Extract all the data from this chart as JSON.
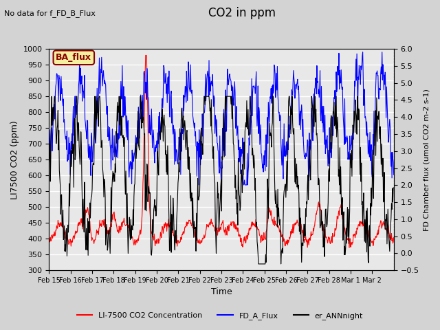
{
  "title": "CO2 in ppm",
  "annotation_topleft": "No data for f_FD_B_Flux",
  "ba_flux_label": "BA_flux",
  "xlabel": "Time",
  "ylabel_left": "LI7500 CO2 (ppm)",
  "ylabel_right_display": "FD Chamber flux (umol CO2 m-2 s-1)",
  "ylim_left": [
    300,
    1000
  ],
  "ylim_right": [
    -0.5,
    6.0
  ],
  "yticks_left": [
    300,
    350,
    400,
    450,
    500,
    550,
    600,
    650,
    700,
    750,
    800,
    850,
    900,
    950,
    1000
  ],
  "yticks_right": [
    -0.5,
    0.0,
    0.5,
    1.0,
    1.5,
    2.0,
    2.5,
    3.0,
    3.5,
    4.0,
    4.5,
    5.0,
    5.5,
    6.0
  ],
  "xtick_labels": [
    "Feb 15",
    "Feb 16",
    "Feb 17",
    "Feb 18",
    "Feb 19",
    "Feb 20",
    "Feb 21",
    "Feb 22",
    "Feb 23",
    "Feb 24",
    "Feb 25",
    "Feb 26",
    "Feb 27",
    "Feb 28",
    "Mar 1",
    "Mar 2"
  ],
  "n_days": 16,
  "legend_entries": [
    {
      "label": "LI-7500 CO2 Concentration",
      "color": "#ff0000",
      "lw": 1.5
    },
    {
      "label": "FD_A_Flux",
      "color": "#0000ff",
      "lw": 1.5
    },
    {
      "label": "er_ANNnight",
      "color": "#000000",
      "lw": 1.5
    }
  ],
  "background_color": "#d3d3d3",
  "plot_bg_color": "#e8e8e8",
  "grid_color": "#ffffff",
  "red_color": "#ff0000",
  "blue_color": "#0000ff",
  "black_color": "#000000"
}
